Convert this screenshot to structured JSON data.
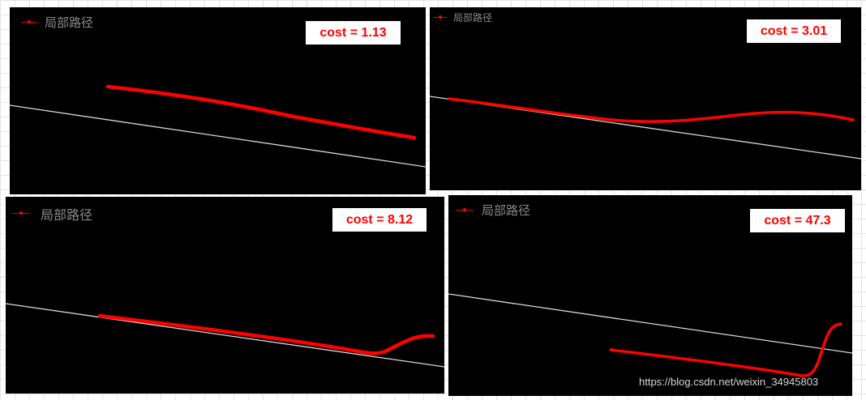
{
  "panels": [
    {
      "legend": {
        "label": "局部路径",
        "icon": "red-line-marker-icon"
      },
      "cost_label": "cost = 1.13"
    },
    {
      "legend": {
        "label": "局部路径",
        "icon": "red-line-marker-icon"
      },
      "cost_label": "cost = 3.01"
    },
    {
      "legend": {
        "label": "局部路径",
        "icon": "red-line-marker-icon"
      },
      "cost_label": "cost = 8.12"
    },
    {
      "legend": {
        "label": "局部路径",
        "icon": "red-line-marker-icon"
      },
      "cost_label": "cost = 47.3"
    }
  ],
  "watermark": "https://blog.csdn.net/weixin_34945803",
  "colors": {
    "background": "#000000",
    "reference_line": "#d8d8d8",
    "local_path": "#ff0000",
    "cost_text": "#ff0000"
  }
}
